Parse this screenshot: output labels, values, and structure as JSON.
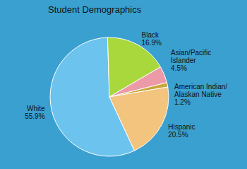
{
  "chart_data": {
    "type": "pie",
    "title": "Student Demographics",
    "categories": [
      "White",
      "Black",
      "Asian/Pacific Islander",
      "American Indian/Alaskan Native",
      "Hispanic"
    ],
    "values": [
      55.9,
      16.9,
      4.5,
      1.2,
      20.5
    ],
    "value_labels": [
      "55.9%",
      "16.9%",
      "4.5%",
      "1.2%",
      "20.5%"
    ],
    "colors": [
      "#6cc3ee",
      "#a8d83c",
      "#ec9aa8",
      "#c9a53a",
      "#f2c47e"
    ],
    "data_labels": true
  }
}
